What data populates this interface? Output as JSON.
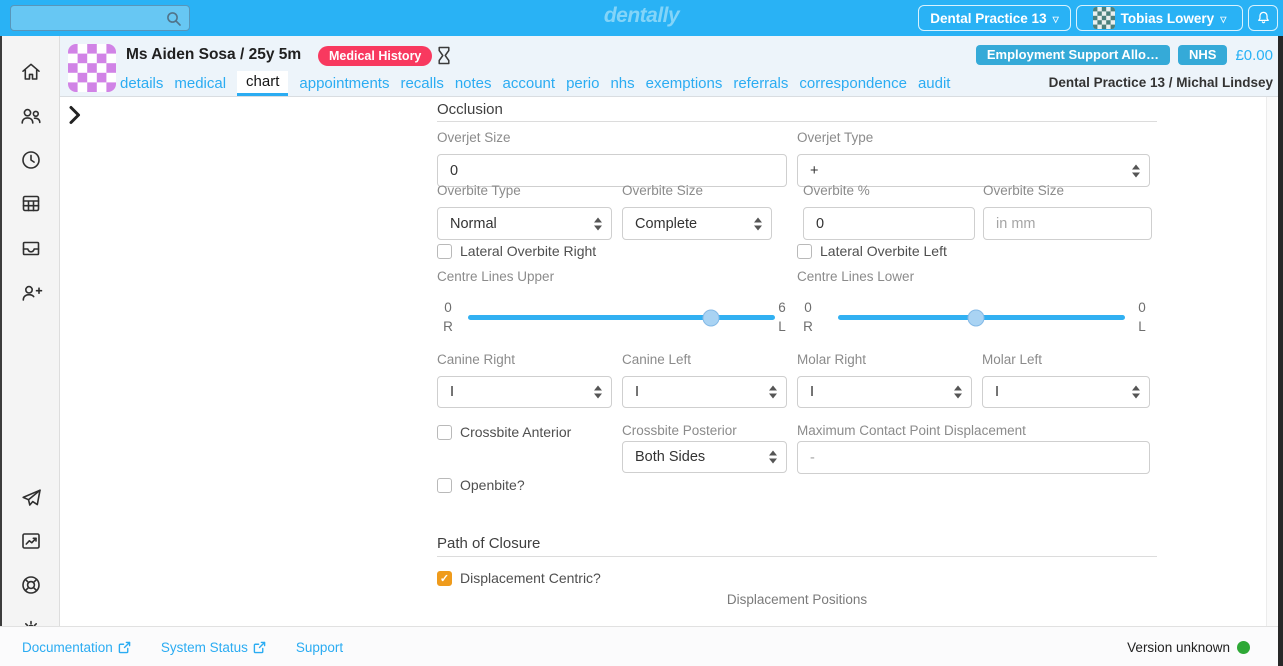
{
  "colors": {
    "accent": "#29b2f5",
    "badge_red": "#f8395f",
    "badge_blue": "#35aad8",
    "checkbox_orange": "#ef9b1c",
    "status_green": "#2ea836"
  },
  "topbar": {
    "logo": "dentally",
    "search": {
      "value": "",
      "placeholder": ""
    },
    "practice_button": "Dental Practice 13",
    "user_button": "Tobias Lowery"
  },
  "patient": {
    "name": "Ms Aiden Sosa / 25y 5m",
    "medical_history_badge": "Medical History",
    "benefit_badge": "Employment Support Allo…",
    "nhs_badge": "NHS",
    "balance": "£0.00",
    "context": "Dental Practice 13 / Michal Lindsey"
  },
  "tabs": [
    {
      "label": "details",
      "active": false
    },
    {
      "label": "medical",
      "active": false
    },
    {
      "label": "chart",
      "active": true
    },
    {
      "label": "appointments",
      "active": false
    },
    {
      "label": "recalls",
      "active": false
    },
    {
      "label": "notes",
      "active": false
    },
    {
      "label": "account",
      "active": false
    },
    {
      "label": "perio",
      "active": false
    },
    {
      "label": "nhs",
      "active": false
    },
    {
      "label": "exemptions",
      "active": false
    },
    {
      "label": "referrals",
      "active": false
    },
    {
      "label": "correspondence",
      "active": false
    },
    {
      "label": "audit",
      "active": false
    }
  ],
  "sidebar": {
    "icons": [
      "home-icon",
      "patients-icon",
      "clock-icon",
      "calendar-icon",
      "inbox-icon",
      "add-patient-icon",
      "send-icon",
      "reports-icon",
      "help-icon",
      "settings-icon"
    ]
  },
  "occlusion": {
    "heading": "Occlusion",
    "overjet_size": {
      "label": "Overjet Size",
      "value": "0"
    },
    "overjet_type": {
      "label": "Overjet Type",
      "value": "+"
    },
    "overbite_type": {
      "label": "Overbite Type",
      "value": "Normal"
    },
    "overbite_size_select": {
      "label": "Overbite Size",
      "value": "Complete"
    },
    "overbite_percent": {
      "label": "Overbite %",
      "value": "0"
    },
    "overbite_size_mm": {
      "label": "Overbite Size",
      "placeholder": "in mm"
    },
    "lateral_overbite_right": {
      "label": "Lateral Overbite Right",
      "checked": false
    },
    "lateral_overbite_left": {
      "label": "Lateral Overbite Left",
      "checked": false
    },
    "centre_lines_upper": {
      "label": "Centre Lines Upper",
      "left_value": "0",
      "left_side": "R",
      "right_value": "6",
      "right_side": "L",
      "thumb_percent": 79
    },
    "centre_lines_lower": {
      "label": "Centre Lines Lower",
      "left_value": "0",
      "left_side": "R",
      "right_value": "0",
      "right_side": "L",
      "thumb_percent": 48
    },
    "canine_right": {
      "label": "Canine Right",
      "value": "I"
    },
    "canine_left": {
      "label": "Canine Left",
      "value": "I"
    },
    "molar_right": {
      "label": "Molar Right",
      "value": "I"
    },
    "molar_left": {
      "label": "Molar Left",
      "value": "I"
    },
    "crossbite_anterior": {
      "label": "Crossbite Anterior",
      "checked": false
    },
    "crossbite_posterior": {
      "label": "Crossbite Posterior",
      "value": "Both Sides"
    },
    "max_contact_point_displacement": {
      "label": "Maximum Contact Point Displacement",
      "placeholder": "-"
    },
    "openbite": {
      "label": "Openbite?",
      "checked": false
    }
  },
  "path_of_closure": {
    "heading": "Path of Closure",
    "displacement_centric": {
      "label": "Displacement Centric?",
      "checked": true
    },
    "displacement_positions": "Displacement Positions"
  },
  "footer": {
    "documentation": "Documentation",
    "system_status": "System Status",
    "support": "Support",
    "version": "Version unknown"
  }
}
